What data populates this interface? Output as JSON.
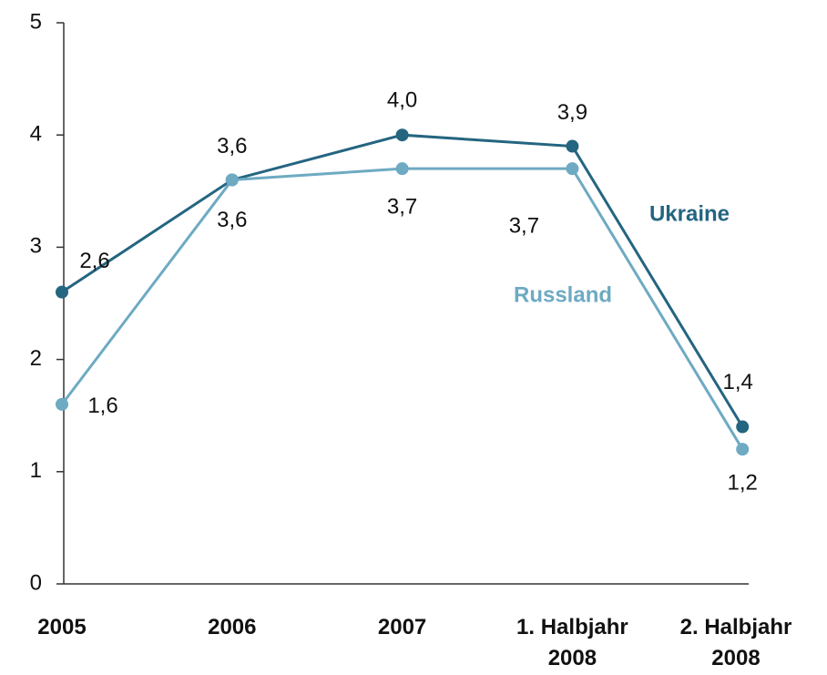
{
  "chart_data": {
    "type": "line",
    "categories": [
      "2005",
      "2006",
      "2007",
      "1. Halbjahr\n2008",
      "2. Halbjahr\n2008"
    ],
    "series": [
      {
        "name": "Ukraine",
        "color": "#246580",
        "values": [
          2.6,
          3.6,
          4.0,
          3.9,
          1.4
        ],
        "value_labels": [
          "2,6",
          "3,6",
          "4,0",
          "3,9",
          "1,4"
        ]
      },
      {
        "name": "Russland",
        "color": "#6eaac2",
        "values": [
          1.6,
          3.6,
          3.7,
          3.7,
          1.2
        ],
        "value_labels": [
          "1,6",
          "3,6",
          "3,7",
          "3,7",
          "1,2"
        ]
      }
    ],
    "ylim": [
      0,
      5
    ],
    "yticks": [
      0,
      1,
      2,
      3,
      4,
      5
    ],
    "grid": false
  }
}
